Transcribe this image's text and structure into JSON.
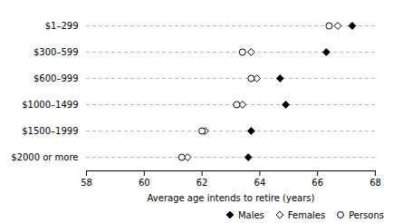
{
  "chart_data": {
    "type": "dot",
    "categories": [
      "$1–299",
      "$300–599",
      "$600–999",
      "$1000–1499",
      "$1500–1999",
      "$2000 or more"
    ],
    "series": [
      {
        "name": "Males",
        "color": "black",
        "marker": "filled_diamond",
        "values": [
          67.2,
          66.3,
          64.7,
          64.9,
          63.7,
          63.6
        ]
      },
      {
        "name": "Females",
        "color": "black",
        "marker": "open_diamond",
        "values": [
          66.7,
          63.7,
          63.9,
          63.4,
          62.1,
          61.5
        ]
      },
      {
        "name": "Persons",
        "color": "black",
        "marker": "open_circle",
        "values": [
          66.4,
          63.4,
          63.7,
          63.2,
          62.0,
          61.3
        ]
      }
    ],
    "xlim": [
      58,
      68
    ],
    "xticks": [
      58,
      60,
      62,
      64,
      66,
      68
    ],
    "xlabel": "Average age intends to retire (years)",
    "grid": true,
    "legend": "lower right"
  }
}
